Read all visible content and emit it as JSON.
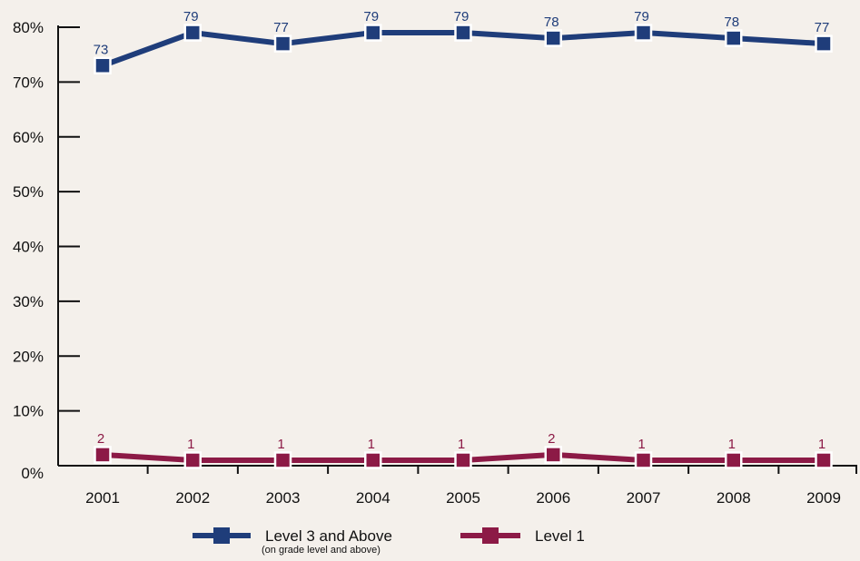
{
  "colors": {
    "background": "#f4f0eb",
    "axis": "#111111",
    "level3": "#1f3d7a",
    "level1": "#8c1a46"
  },
  "chart_data": {
    "type": "line",
    "title": "",
    "xlabel": "",
    "ylabel": "",
    "x": [
      "2001",
      "2002",
      "2003",
      "2004",
      "2005",
      "2006",
      "2007",
      "2008",
      "2009"
    ],
    "y_ticks": [
      "0%",
      "10%",
      "20%",
      "30%",
      "40%",
      "50%",
      "60%",
      "70%",
      "80%"
    ],
    "ylim": [
      0,
      80
    ],
    "grid": false,
    "legend_position": "bottom",
    "series": [
      {
        "name": "Level 3 and Above",
        "subtitle": "(on grade level and above)",
        "color": "#1f3d7a",
        "marker": "square",
        "values": [
          73,
          79,
          77,
          79,
          79,
          78,
          79,
          78,
          77
        ],
        "data_labels": [
          "73",
          "79",
          "77",
          "79",
          "79",
          "78",
          "79",
          "78",
          "77"
        ]
      },
      {
        "name": "Level 1",
        "color": "#8c1a46",
        "marker": "square",
        "values": [
          2,
          1,
          1,
          1,
          1,
          2,
          1,
          1,
          1
        ],
        "data_labels": [
          "2",
          "1",
          "1",
          "1",
          "1",
          "2",
          "1",
          "1",
          "1"
        ]
      }
    ]
  }
}
